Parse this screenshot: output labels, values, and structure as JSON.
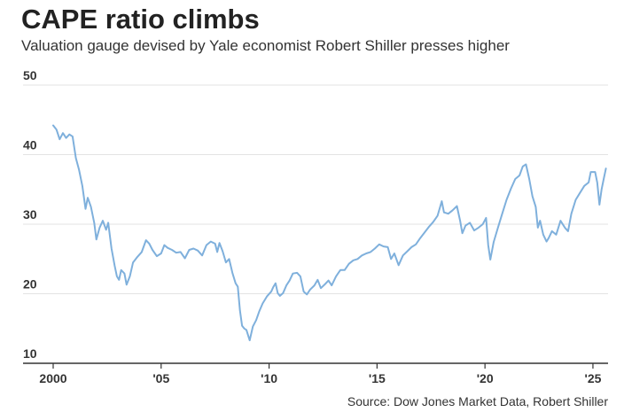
{
  "header": {
    "title": "CAPE ratio climbs",
    "subtitle": "Valuation gauge devised by Yale economist Robert Shiller presses higher"
  },
  "footer": {
    "source": "Source: Dow Jones Market Data, Robert Shiller"
  },
  "colors": {
    "line": "#7fb0dc",
    "grid": "#e3e3e3",
    "axis": "#333333"
  },
  "chart_data": {
    "type": "line",
    "title": "CAPE ratio climbs",
    "subtitle": "Valuation gauge devised by Yale economist Robert Shiller presses higher",
    "xlabel": "",
    "ylabel": "",
    "xlim": [
      2000,
      2025.7
    ],
    "ylim": [
      10,
      50
    ],
    "grid": true,
    "yticks": [
      {
        "value": 10,
        "label": "10"
      },
      {
        "value": 20,
        "label": "20"
      },
      {
        "value": 30,
        "label": "30"
      },
      {
        "value": 40,
        "label": "40"
      },
      {
        "value": 50,
        "label": "50"
      }
    ],
    "xticks": [
      {
        "value": 2000,
        "label": "2000"
      },
      {
        "value": 2005,
        "label": "'05"
      },
      {
        "value": 2010,
        "label": "'10"
      },
      {
        "value": 2015,
        "label": "'15"
      },
      {
        "value": 2020,
        "label": "'20"
      },
      {
        "value": 2025,
        "label": "'25"
      }
    ],
    "series": [
      {
        "points": [
          [
            2000.0,
            44.2
          ],
          [
            2000.15,
            43.6
          ],
          [
            2000.3,
            42.2
          ],
          [
            2000.45,
            43.1
          ],
          [
            2000.6,
            42.4
          ],
          [
            2000.75,
            42.9
          ],
          [
            2000.9,
            42.6
          ],
          [
            2001.05,
            39.5
          ],
          [
            2001.2,
            37.8
          ],
          [
            2001.35,
            35.5
          ],
          [
            2001.5,
            32.2
          ],
          [
            2001.6,
            33.8
          ],
          [
            2001.75,
            32.5
          ],
          [
            2001.9,
            30.2
          ],
          [
            2002.0,
            27.8
          ],
          [
            2002.15,
            29.5
          ],
          [
            2002.3,
            30.5
          ],
          [
            2002.45,
            29.2
          ],
          [
            2002.55,
            30.2
          ],
          [
            2002.7,
            26.5
          ],
          [
            2002.85,
            24.0
          ],
          [
            2002.95,
            22.5
          ],
          [
            2003.05,
            22.0
          ],
          [
            2003.15,
            23.4
          ],
          [
            2003.3,
            22.9
          ],
          [
            2003.4,
            21.3
          ],
          [
            2003.55,
            22.5
          ],
          [
            2003.7,
            24.5
          ],
          [
            2003.9,
            25.3
          ],
          [
            2004.1,
            26.0
          ],
          [
            2004.3,
            27.7
          ],
          [
            2004.45,
            27.2
          ],
          [
            2004.6,
            26.3
          ],
          [
            2004.8,
            25.4
          ],
          [
            2005.0,
            25.8
          ],
          [
            2005.15,
            27.0
          ],
          [
            2005.3,
            26.6
          ],
          [
            2005.5,
            26.3
          ],
          [
            2005.7,
            25.9
          ],
          [
            2005.9,
            26.0
          ],
          [
            2006.1,
            25.1
          ],
          [
            2006.3,
            26.3
          ],
          [
            2006.5,
            26.5
          ],
          [
            2006.7,
            26.2
          ],
          [
            2006.9,
            25.5
          ],
          [
            2007.1,
            27.0
          ],
          [
            2007.3,
            27.5
          ],
          [
            2007.5,
            27.2
          ],
          [
            2007.6,
            26.0
          ],
          [
            2007.7,
            27.3
          ],
          [
            2007.85,
            26.1
          ],
          [
            2008.0,
            24.5
          ],
          [
            2008.15,
            25.0
          ],
          [
            2008.3,
            23.0
          ],
          [
            2008.45,
            21.5
          ],
          [
            2008.55,
            21.0
          ],
          [
            2008.65,
            17.6
          ],
          [
            2008.75,
            15.4
          ],
          [
            2008.85,
            15.0
          ],
          [
            2008.95,
            14.8
          ],
          [
            2009.1,
            13.3
          ],
          [
            2009.25,
            15.3
          ],
          [
            2009.4,
            16.2
          ],
          [
            2009.55,
            17.5
          ],
          [
            2009.7,
            18.6
          ],
          [
            2009.9,
            19.6
          ],
          [
            2010.1,
            20.3
          ],
          [
            2010.2,
            21.0
          ],
          [
            2010.3,
            21.5
          ],
          [
            2010.4,
            20.1
          ],
          [
            2010.5,
            19.7
          ],
          [
            2010.65,
            20.1
          ],
          [
            2010.8,
            21.2
          ],
          [
            2010.95,
            21.9
          ],
          [
            2011.1,
            22.9
          ],
          [
            2011.3,
            23.0
          ],
          [
            2011.45,
            22.5
          ],
          [
            2011.6,
            20.3
          ],
          [
            2011.75,
            19.9
          ],
          [
            2011.9,
            20.6
          ],
          [
            2012.1,
            21.2
          ],
          [
            2012.25,
            22.0
          ],
          [
            2012.4,
            20.8
          ],
          [
            2012.6,
            21.4
          ],
          [
            2012.75,
            21.9
          ],
          [
            2012.9,
            21.2
          ],
          [
            2013.1,
            22.5
          ],
          [
            2013.3,
            23.4
          ],
          [
            2013.5,
            23.4
          ],
          [
            2013.7,
            24.3
          ],
          [
            2013.9,
            24.8
          ],
          [
            2014.1,
            25.0
          ],
          [
            2014.3,
            25.5
          ],
          [
            2014.5,
            25.8
          ],
          [
            2014.7,
            26.0
          ],
          [
            2014.9,
            26.5
          ],
          [
            2015.1,
            27.1
          ],
          [
            2015.3,
            26.8
          ],
          [
            2015.5,
            26.7
          ],
          [
            2015.65,
            25.0
          ],
          [
            2015.8,
            25.8
          ],
          [
            2016.0,
            24.1
          ],
          [
            2016.2,
            25.5
          ],
          [
            2016.4,
            26.1
          ],
          [
            2016.6,
            26.7
          ],
          [
            2016.8,
            27.1
          ],
          [
            2017.0,
            28.0
          ],
          [
            2017.2,
            28.8
          ],
          [
            2017.4,
            29.6
          ],
          [
            2017.6,
            30.3
          ],
          [
            2017.8,
            31.2
          ],
          [
            2018.0,
            33.3
          ],
          [
            2018.1,
            31.7
          ],
          [
            2018.3,
            31.5
          ],
          [
            2018.5,
            32.0
          ],
          [
            2018.7,
            32.6
          ],
          [
            2018.85,
            30.5
          ],
          [
            2018.95,
            28.7
          ],
          [
            2019.1,
            29.8
          ],
          [
            2019.3,
            30.2
          ],
          [
            2019.5,
            29.1
          ],
          [
            2019.7,
            29.5
          ],
          [
            2019.9,
            30.0
          ],
          [
            2020.05,
            30.9
          ],
          [
            2020.15,
            27.0
          ],
          [
            2020.25,
            24.9
          ],
          [
            2020.4,
            27.4
          ],
          [
            2020.6,
            29.5
          ],
          [
            2020.8,
            31.5
          ],
          [
            2021.0,
            33.5
          ],
          [
            2021.2,
            35.1
          ],
          [
            2021.4,
            36.5
          ],
          [
            2021.6,
            37.0
          ],
          [
            2021.75,
            38.3
          ],
          [
            2021.9,
            38.6
          ],
          [
            2022.05,
            36.5
          ],
          [
            2022.2,
            34.0
          ],
          [
            2022.35,
            32.5
          ],
          [
            2022.45,
            29.5
          ],
          [
            2022.55,
            30.5
          ],
          [
            2022.7,
            28.5
          ],
          [
            2022.85,
            27.5
          ],
          [
            2022.95,
            28.0
          ],
          [
            2023.1,
            29.0
          ],
          [
            2023.3,
            28.5
          ],
          [
            2023.5,
            30.5
          ],
          [
            2023.7,
            29.5
          ],
          [
            2023.85,
            29.0
          ],
          [
            2024.0,
            31.5
          ],
          [
            2024.2,
            33.5
          ],
          [
            2024.4,
            34.5
          ],
          [
            2024.6,
            35.5
          ],
          [
            2024.8,
            36.0
          ],
          [
            2024.9,
            37.5
          ],
          [
            2025.1,
            37.5
          ],
          [
            2025.2,
            36.0
          ],
          [
            2025.3,
            32.8
          ],
          [
            2025.4,
            35.0
          ],
          [
            2025.5,
            36.5
          ],
          [
            2025.6,
            38.0
          ]
        ]
      }
    ]
  }
}
